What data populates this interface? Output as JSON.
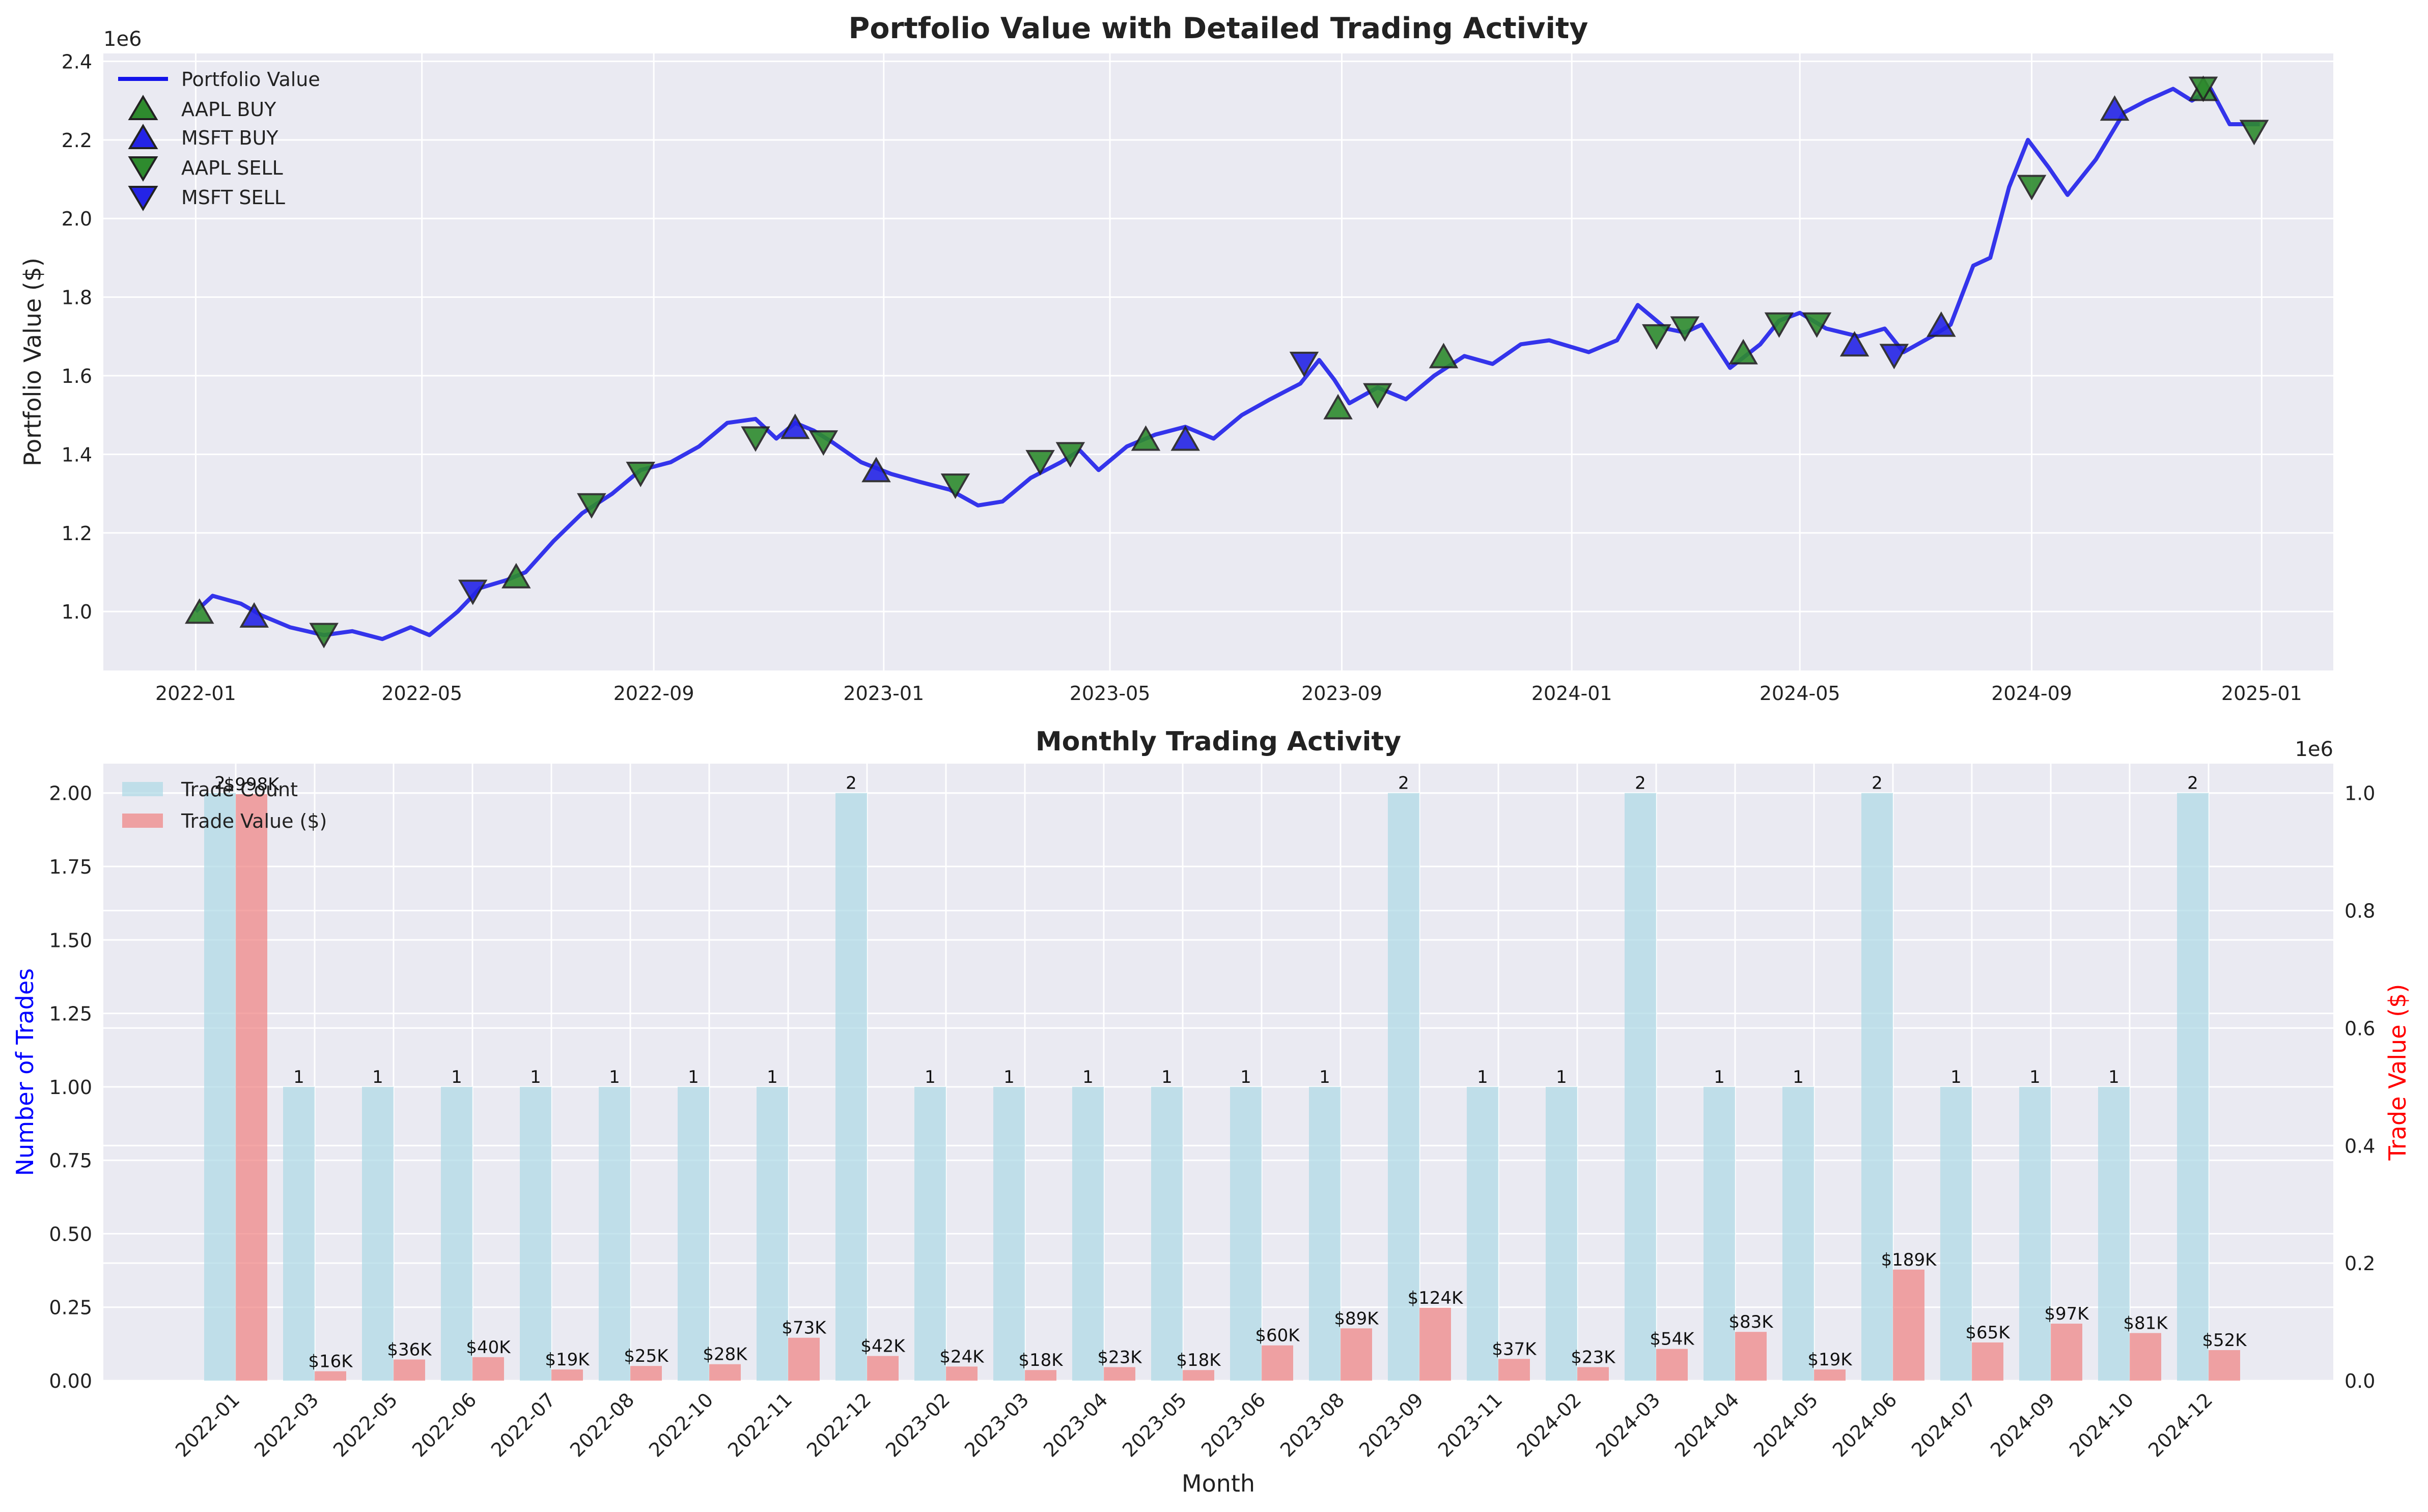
{
  "chart_data": [
    {
      "type": "line",
      "title": "Portfolio Value with Detailed Trading Activity",
      "ylabel": "Portfolio Value ($)",
      "y_offset_text": "1e6",
      "ylim": [
        850000,
        2420000
      ],
      "yticks": [
        1000000,
        1200000,
        1400000,
        1600000,
        1800000,
        2000000,
        2200000,
        2400000
      ],
      "ytick_labels": [
        "1.0",
        "1.2",
        "1.4",
        "1.6",
        "1.8",
        "2.0",
        "2.2",
        "2.4"
      ],
      "xlim": [
        "2021-11-13",
        "2025-02-08"
      ],
      "xticks": [
        "2022-01-01",
        "2022-05-01",
        "2022-09-01",
        "2023-01-01",
        "2023-05-01",
        "2023-09-01",
        "2024-01-01",
        "2024-05-01",
        "2024-09-01",
        "2025-01-01"
      ],
      "xtick_labels": [
        "2022-01",
        "2022-05",
        "2022-09",
        "2023-01",
        "2023-05",
        "2023-09",
        "2024-01",
        "2024-05",
        "2024-09",
        "2025-01"
      ],
      "grid": true,
      "legend_position": "top-left",
      "legend": [
        "Portfolio Value",
        "AAPL BUY",
        "MSFT BUY",
        "AAPL SELL",
        "MSFT SELL"
      ],
      "colors": {
        "line": "#1414ea",
        "aapl": "#2e8b2e",
        "msft": "#2424e6",
        "background": "#eaeaf2"
      },
      "series": [
        {
          "name": "Portfolio Value",
          "points": [
            [
              "2022-01-01",
              1000000
            ],
            [
              "2022-01-10",
              1040000
            ],
            [
              "2022-01-25",
              1020000
            ],
            [
              "2022-02-05",
              990000
            ],
            [
              "2022-02-20",
              960000
            ],
            [
              "2022-03-10",
              940000
            ],
            [
              "2022-03-25",
              950000
            ],
            [
              "2022-04-10",
              930000
            ],
            [
              "2022-04-25",
              960000
            ],
            [
              "2022-05-05",
              940000
            ],
            [
              "2022-05-20",
              1000000
            ],
            [
              "2022-06-01",
              1060000
            ],
            [
              "2022-06-15",
              1080000
            ],
            [
              "2022-06-25",
              1100000
            ],
            [
              "2022-07-10",
              1180000
            ],
            [
              "2022-07-25",
              1250000
            ],
            [
              "2022-08-10",
              1300000
            ],
            [
              "2022-08-25",
              1360000
            ],
            [
              "2022-09-10",
              1380000
            ],
            [
              "2022-09-25",
              1420000
            ],
            [
              "2022-10-10",
              1480000
            ],
            [
              "2022-10-25",
              1490000
            ],
            [
              "2022-11-05",
              1440000
            ],
            [
              "2022-11-15",
              1480000
            ],
            [
              "2022-11-25",
              1460000
            ],
            [
              "2022-12-05",
              1430000
            ],
            [
              "2022-12-20",
              1380000
            ],
            [
              "2023-01-05",
              1350000
            ],
            [
              "2023-01-20",
              1330000
            ],
            [
              "2023-02-05",
              1310000
            ],
            [
              "2023-02-20",
              1270000
            ],
            [
              "2023-03-05",
              1280000
            ],
            [
              "2023-03-20",
              1340000
            ],
            [
              "2023-04-05",
              1380000
            ],
            [
              "2023-04-15",
              1410000
            ],
            [
              "2023-04-25",
              1360000
            ],
            [
              "2023-05-10",
              1420000
            ],
            [
              "2023-05-25",
              1450000
            ],
            [
              "2023-06-10",
              1470000
            ],
            [
              "2023-06-25",
              1440000
            ],
            [
              "2023-07-10",
              1500000
            ],
            [
              "2023-07-25",
              1540000
            ],
            [
              "2023-08-10",
              1580000
            ],
            [
              "2023-08-20",
              1640000
            ],
            [
              "2023-08-28",
              1590000
            ],
            [
              "2023-09-05",
              1530000
            ],
            [
              "2023-09-20",
              1570000
            ],
            [
              "2023-10-05",
              1540000
            ],
            [
              "2023-10-20",
              1600000
            ],
            [
              "2023-11-05",
              1650000
            ],
            [
              "2023-11-20",
              1630000
            ],
            [
              "2023-12-05",
              1680000
            ],
            [
              "2023-12-20",
              1690000
            ],
            [
              "2024-01-10",
              1660000
            ],
            [
              "2024-01-25",
              1690000
            ],
            [
              "2024-02-05",
              1780000
            ],
            [
              "2024-02-20",
              1720000
            ],
            [
              "2024-03-01",
              1710000
            ],
            [
              "2024-03-10",
              1730000
            ],
            [
              "2024-03-25",
              1620000
            ],
            [
              "2024-04-10",
              1680000
            ],
            [
              "2024-04-20",
              1740000
            ],
            [
              "2024-05-01",
              1760000
            ],
            [
              "2024-05-15",
              1720000
            ],
            [
              "2024-06-01",
              1700000
            ],
            [
              "2024-06-15",
              1720000
            ],
            [
              "2024-06-25",
              1660000
            ],
            [
              "2024-07-10",
              1700000
            ],
            [
              "2024-07-20",
              1730000
            ],
            [
              "2024-08-01",
              1880000
            ],
            [
              "2024-08-10",
              1900000
            ],
            [
              "2024-08-20",
              2080000
            ],
            [
              "2024-08-30",
              2200000
            ],
            [
              "2024-09-10",
              2130000
            ],
            [
              "2024-09-20",
              2060000
            ],
            [
              "2024-10-05",
              2150000
            ],
            [
              "2024-10-20",
              2270000
            ],
            [
              "2024-11-01",
              2300000
            ],
            [
              "2024-11-15",
              2330000
            ],
            [
              "2024-11-25",
              2300000
            ],
            [
              "2024-12-05",
              2330000
            ],
            [
              "2024-12-15",
              2240000
            ],
            [
              "2024-12-31",
              2240000
            ]
          ]
        }
      ],
      "markers": [
        {
          "symbol": "AAPL",
          "action": "BUY",
          "date": "2022-01-03",
          "value": 1000000
        },
        {
          "symbol": "MSFT",
          "action": "BUY",
          "date": "2022-02-01",
          "value": 990000
        },
        {
          "symbol": "AAPL",
          "action": "SELL",
          "date": "2022-03-10",
          "value": 940000
        },
        {
          "symbol": "MSFT",
          "action": "SELL",
          "date": "2022-05-28",
          "value": 1050000
        },
        {
          "symbol": "AAPL",
          "action": "BUY",
          "date": "2022-06-20",
          "value": 1090000
        },
        {
          "symbol": "AAPL",
          "action": "SELL",
          "date": "2022-07-30",
          "value": 1270000
        },
        {
          "symbol": "AAPL",
          "action": "SELL",
          "date": "2022-08-25",
          "value": 1350000
        },
        {
          "symbol": "AAPL",
          "action": "SELL",
          "date": "2022-10-25",
          "value": 1440000
        },
        {
          "symbol": "MSFT",
          "action": "BUY",
          "date": "2022-11-15",
          "value": 1470000
        },
        {
          "symbol": "AAPL",
          "action": "SELL",
          "date": "2022-11-30",
          "value": 1430000
        },
        {
          "symbol": "MSFT",
          "action": "BUY",
          "date": "2022-12-28",
          "value": 1360000
        },
        {
          "symbol": "AAPL",
          "action": "SELL",
          "date": "2023-02-08",
          "value": 1320000
        },
        {
          "symbol": "AAPL",
          "action": "SELL",
          "date": "2023-03-25",
          "value": 1380000
        },
        {
          "symbol": "AAPL",
          "action": "SELL",
          "date": "2023-04-10",
          "value": 1400000
        },
        {
          "symbol": "AAPL",
          "action": "BUY",
          "date": "2023-05-20",
          "value": 1440000
        },
        {
          "symbol": "MSFT",
          "action": "BUY",
          "date": "2023-06-10",
          "value": 1440000
        },
        {
          "symbol": "MSFT",
          "action": "SELL",
          "date": "2023-08-12",
          "value": 1630000
        },
        {
          "symbol": "AAPL",
          "action": "BUY",
          "date": "2023-08-30",
          "value": 1520000
        },
        {
          "symbol": "AAPL",
          "action": "SELL",
          "date": "2023-09-20",
          "value": 1550000
        },
        {
          "symbol": "AAPL",
          "action": "BUY",
          "date": "2023-10-25",
          "value": 1650000
        },
        {
          "symbol": "AAPL",
          "action": "SELL",
          "date": "2024-02-15",
          "value": 1700000
        },
        {
          "symbol": "AAPL",
          "action": "SELL",
          "date": "2024-03-01",
          "value": 1720000
        },
        {
          "symbol": "AAPL",
          "action": "BUY",
          "date": "2024-04-01",
          "value": 1660000
        },
        {
          "symbol": "AAPL",
          "action": "SELL",
          "date": "2024-04-20",
          "value": 1730000
        },
        {
          "symbol": "AAPL",
          "action": "SELL",
          "date": "2024-05-10",
          "value": 1730000
        },
        {
          "symbol": "MSFT",
          "action": "BUY",
          "date": "2024-05-30",
          "value": 1680000
        },
        {
          "symbol": "MSFT",
          "action": "SELL",
          "date": "2024-06-20",
          "value": 1650000
        },
        {
          "symbol": "MSFT",
          "action": "BUY",
          "date": "2024-07-15",
          "value": 1730000
        },
        {
          "symbol": "AAPL",
          "action": "SELL",
          "date": "2024-09-01",
          "value": 2080000
        },
        {
          "symbol": "MSFT",
          "action": "BUY",
          "date": "2024-10-15",
          "value": 2280000
        },
        {
          "symbol": "AAPL",
          "action": "BUY",
          "date": "2024-12-01",
          "value": 2330000
        },
        {
          "symbol": "AAPL",
          "action": "SELL",
          "date": "2024-12-01",
          "value": 2330000
        },
        {
          "symbol": "AAPL",
          "action": "SELL",
          "date": "2024-12-28",
          "value": 2220000
        }
      ]
    },
    {
      "type": "bar",
      "title": "Monthly Trading Activity",
      "xlabel": "Month",
      "ylabel": "Number of Trades",
      "y2label": "Trade Value ($)",
      "y2_offset_text": "1e6",
      "ylim": [
        0,
        2.1
      ],
      "y2lim": [
        0,
        1050000
      ],
      "yticks": [
        0,
        0.25,
        0.5,
        0.75,
        1.0,
        1.25,
        1.5,
        1.75,
        2.0
      ],
      "ytick_labels": [
        "0.00",
        "0.25",
        "0.50",
        "0.75",
        "1.00",
        "1.25",
        "1.50",
        "1.75",
        "2.00"
      ],
      "y2ticks": [
        0,
        200000,
        400000,
        600000,
        800000,
        1000000
      ],
      "y2tick_labels": [
        "0.0",
        "0.2",
        "0.4",
        "0.6",
        "0.8",
        "1.0"
      ],
      "grid": true,
      "legend_position": "top-left",
      "colors": {
        "count": "#add8e6",
        "value": "#f08080",
        "ylabel": "#0000ff",
        "y2label": "#ff0000"
      },
      "categories": [
        "2022-01",
        "2022-03",
        "2022-05",
        "2022-06",
        "2022-07",
        "2022-08",
        "2022-10",
        "2022-11",
        "2022-12",
        "2023-02",
        "2023-03",
        "2023-04",
        "2023-05",
        "2023-06",
        "2023-08",
        "2023-09",
        "2023-11",
        "2024-02",
        "2024-03",
        "2024-04",
        "2024-05",
        "2024-06",
        "2024-07",
        "2024-09",
        "2024-10",
        "2024-12"
      ],
      "series": [
        {
          "name": "Trade Count",
          "values": [
            2,
            1,
            1,
            1,
            1,
            1,
            1,
            1,
            2,
            1,
            1,
            1,
            1,
            1,
            1,
            2,
            1,
            1,
            2,
            1,
            1,
            2,
            1,
            1,
            1,
            2
          ],
          "labels": [
            "2",
            "1",
            "1",
            "1",
            "1",
            "1",
            "1",
            "1",
            "2",
            "1",
            "1",
            "1",
            "1",
            "1",
            "1",
            "2",
            "1",
            "1",
            "2",
            "1",
            "1",
            "2",
            "1",
            "1",
            "1",
            "2"
          ]
        },
        {
          "name": "Trade Value ($)",
          "values": [
            998000,
            16000,
            36000,
            40000,
            19000,
            25000,
            28000,
            73000,
            42000,
            24000,
            18000,
            23000,
            18000,
            60000,
            89000,
            124000,
            37000,
            23000,
            54000,
            83000,
            19000,
            189000,
            65000,
            97000,
            81000,
            52000
          ],
          "labels": [
            "$998K",
            "$16K",
            "$36K",
            "$40K",
            "$19K",
            "$25K",
            "$28K",
            "$73K",
            "$42K",
            "$24K",
            "$18K",
            "$23K",
            "$18K",
            "$60K",
            "$89K",
            "$124K",
            "$37K",
            "$23K",
            "$54K",
            "$83K",
            "$19K",
            "$189K",
            "$65K",
            "$97K",
            "$81K",
            "$52K"
          ]
        }
      ]
    }
  ]
}
